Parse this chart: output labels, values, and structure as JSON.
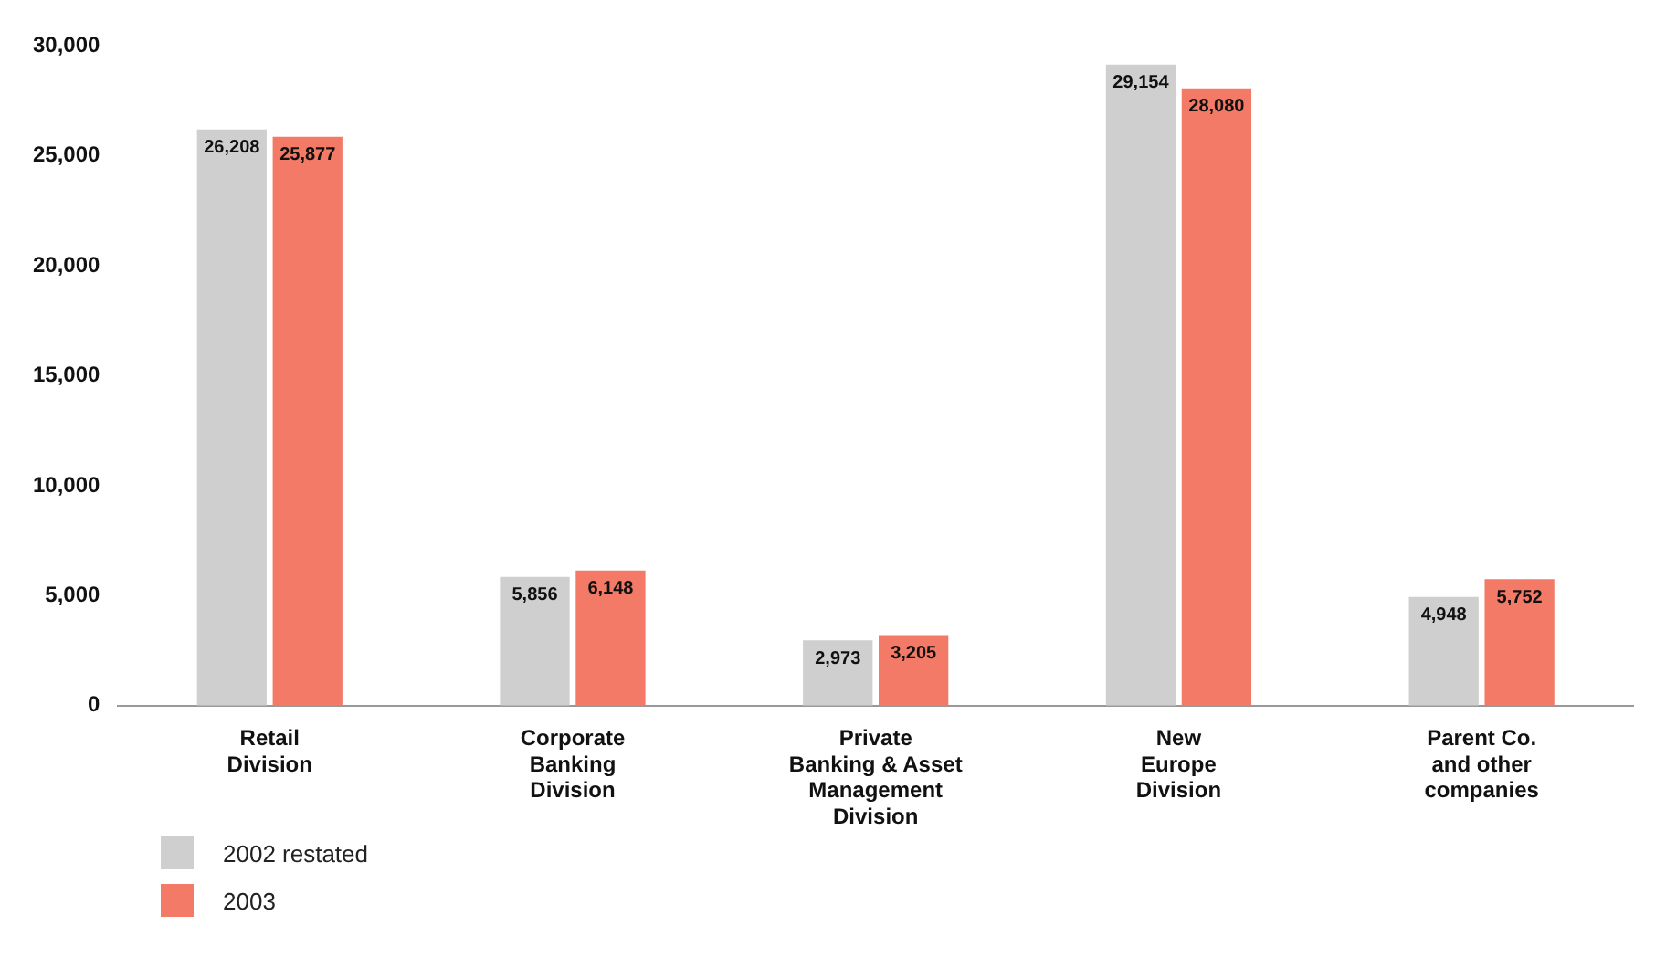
{
  "chart_data": {
    "type": "bar",
    "categories": [
      "Retail\nDivision",
      "Corporate\nBanking\nDivision",
      "Private\nBanking & Asset\nManagement\nDivision",
      "New\nEurope\nDivision",
      "Parent Co.\nand other\ncompanies"
    ],
    "series": [
      {
        "name": "2002 restated",
        "color": "#cfcfcf",
        "values": [
          26208,
          5856,
          2973,
          29154,
          4948
        ],
        "value_labels": [
          "26,208",
          "5,856",
          "2,973",
          "29,154",
          "4,948"
        ]
      },
      {
        "name": "2003",
        "color": "#f27a66",
        "values": [
          25877,
          6148,
          3205,
          28080,
          5752
        ],
        "value_labels": [
          "25,877",
          "6,148",
          "3,205",
          "28,080",
          "5,752"
        ]
      }
    ],
    "ylim": [
      0,
      30000
    ],
    "yticks": [
      {
        "value": 0,
        "label": "0"
      },
      {
        "value": 5000,
        "label": "5,000"
      },
      {
        "value": 10000,
        "label": "10,000"
      },
      {
        "value": 15000,
        "label": "15,000"
      },
      {
        "value": 20000,
        "label": "20,000"
      },
      {
        "value": 25000,
        "label": "25,000"
      },
      {
        "value": 30000,
        "label": "30,000"
      }
    ],
    "legend": "bottom left"
  }
}
